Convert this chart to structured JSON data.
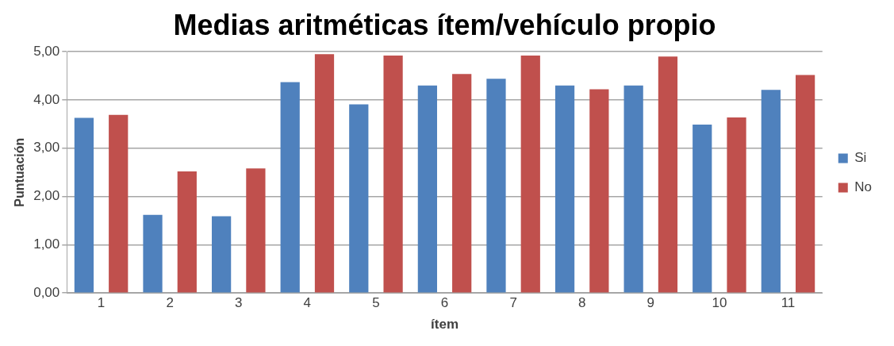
{
  "chart_data": {
    "type": "bar",
    "title": "Medias aritméticas ítem/vehículo propio",
    "xlabel": "ítem",
    "ylabel": "Puntuación",
    "categories": [
      "1",
      "2",
      "3",
      "4",
      "5",
      "6",
      "7",
      "8",
      "9",
      "10",
      "11"
    ],
    "series": [
      {
        "name": "Si",
        "color": "#4f81bd",
        "values": [
          3.63,
          1.62,
          1.59,
          4.37,
          3.91,
          4.3,
          4.44,
          4.3,
          4.3,
          3.49,
          4.21
        ]
      },
      {
        "name": "No",
        "color": "#c0504d",
        "values": [
          3.69,
          2.52,
          2.58,
          4.95,
          4.92,
          4.54,
          4.92,
          4.22,
          4.9,
          3.64,
          4.52
        ]
      }
    ],
    "ylim": [
      0,
      5
    ],
    "yticks": [
      {
        "value": 0,
        "label": "0,00"
      },
      {
        "value": 1,
        "label": "1,00"
      },
      {
        "value": 2,
        "label": "2,00"
      },
      {
        "value": 3,
        "label": "3,00"
      },
      {
        "value": 4,
        "label": "4,00"
      },
      {
        "value": 5,
        "label": "5,00"
      }
    ],
    "grid": "y",
    "legend": "right"
  }
}
